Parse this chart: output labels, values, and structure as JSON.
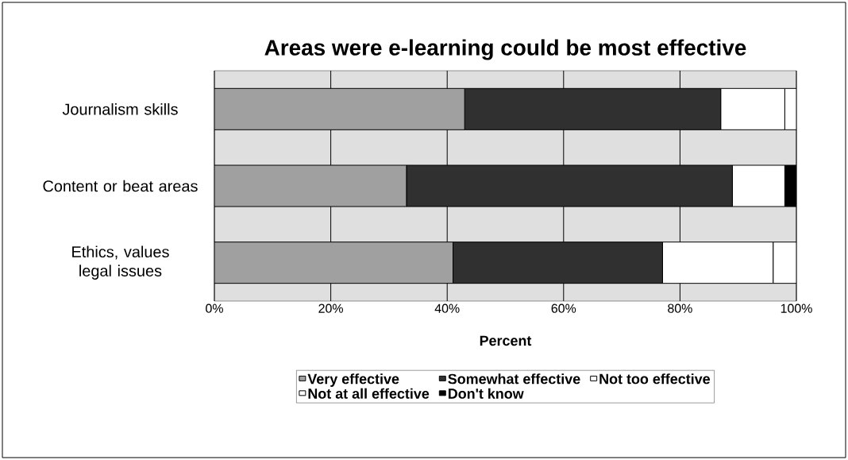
{
  "chart_data": {
    "type": "bar",
    "orientation": "horizontal",
    "stacked": true,
    "title": "Areas were e-learning could be most effective",
    "xlabel": "Percent",
    "categories": [
      "Journalism skills",
      "Content or beat areas",
      "Ethics, values legal issues"
    ],
    "series": [
      {
        "name": "Very effective",
        "color": "#a0a0a0",
        "values": [
          43,
          33,
          41
        ]
      },
      {
        "name": "Somewhat effective",
        "color": "#303030",
        "values": [
          44,
          56,
          36
        ]
      },
      {
        "name": "Not too effective",
        "color": "#ffffff",
        "values": [
          11,
          9,
          19
        ]
      },
      {
        "name": "Not at all effective",
        "color": "#ffffff",
        "values": [
          2,
          0,
          4
        ]
      },
      {
        "name": "Don't know",
        "color": "#000000",
        "values": [
          0,
          2,
          0
        ]
      }
    ],
    "xlim": [
      0,
      100
    ],
    "xticks": [
      {
        "value": 0,
        "label": "0%"
      },
      {
        "value": 20,
        "label": "20%"
      },
      {
        "value": 40,
        "label": "40%"
      },
      {
        "value": 60,
        "label": "60%"
      },
      {
        "value": 80,
        "label": "80%"
      },
      {
        "value": 100,
        "label": "100%"
      }
    ],
    "grid": "x",
    "legend": "bottom"
  }
}
